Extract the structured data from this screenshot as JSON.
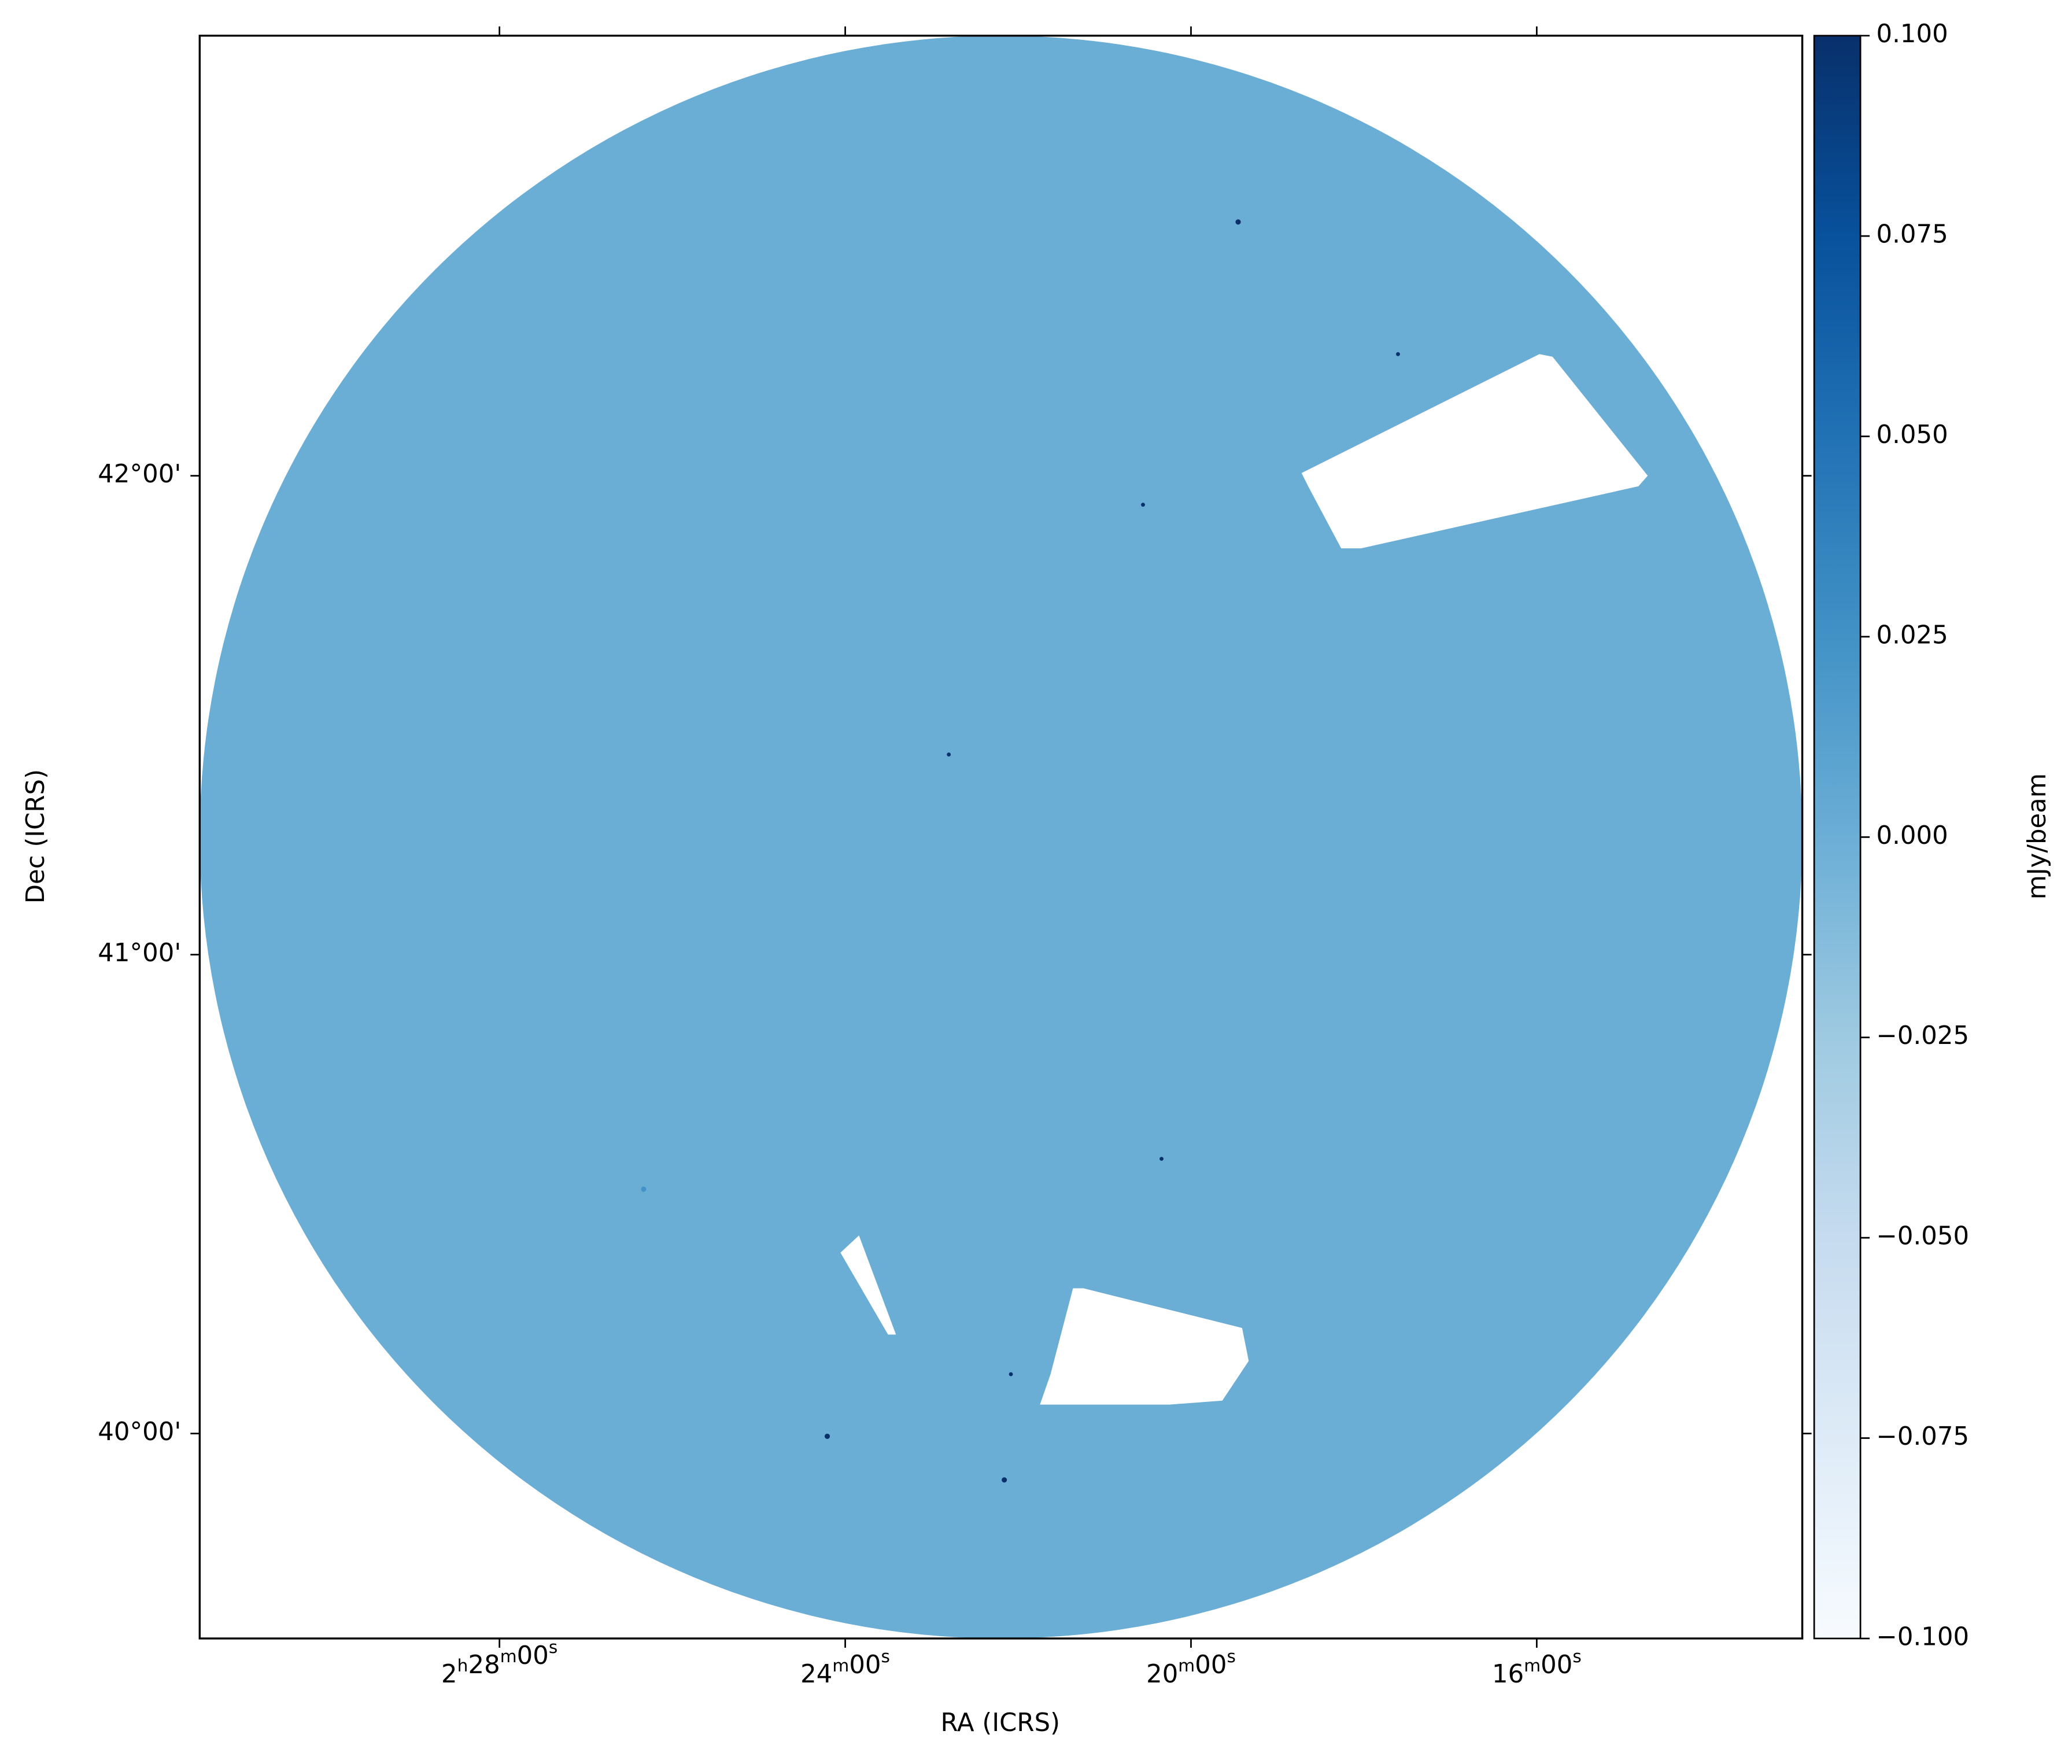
{
  "chart_data": {
    "type": "image",
    "x_label": "RA (ICRS)",
    "y_label": "Dec (ICRS)",
    "xlim": [
      37.867,
      33.232
    ],
    "xticks": [
      {
        "value": 37,
        "label": "2h28m00s"
      },
      {
        "value": 36,
        "label": "24m00s"
      },
      {
        "value": 35,
        "label": "20m00s"
      },
      {
        "value": 34,
        "label": "16m00s"
      }
    ],
    "ylim": [
      39.572,
      42.919
    ],
    "yticks": [
      {
        "value": 42,
        "label": "42°00'"
      },
      {
        "value": 41,
        "label": "41°00'"
      },
      {
        "value": 40,
        "label": "40°00'"
      }
    ],
    "colormap": "Blues",
    "colorbar_label": "mJy/beam",
    "clim": [
      -0.1,
      0.1
    ],
    "cticks": [
      {
        "value": 0.1,
        "label": "0.100"
      },
      {
        "value": 0.075,
        "label": "0.075"
      },
      {
        "value": 0.05,
        "label": "0.050"
      },
      {
        "value": 0.025,
        "label": "0.025"
      },
      {
        "value": 0,
        "label": "0.000"
      },
      {
        "value": -0.025,
        "label": "−0.025"
      },
      {
        "value": -0.05,
        "label": "−0.050"
      },
      {
        "value": -0.075,
        "label": "−0.075"
      },
      {
        "value": -0.1,
        "label": "−0.100"
      }
    ]
  }
}
